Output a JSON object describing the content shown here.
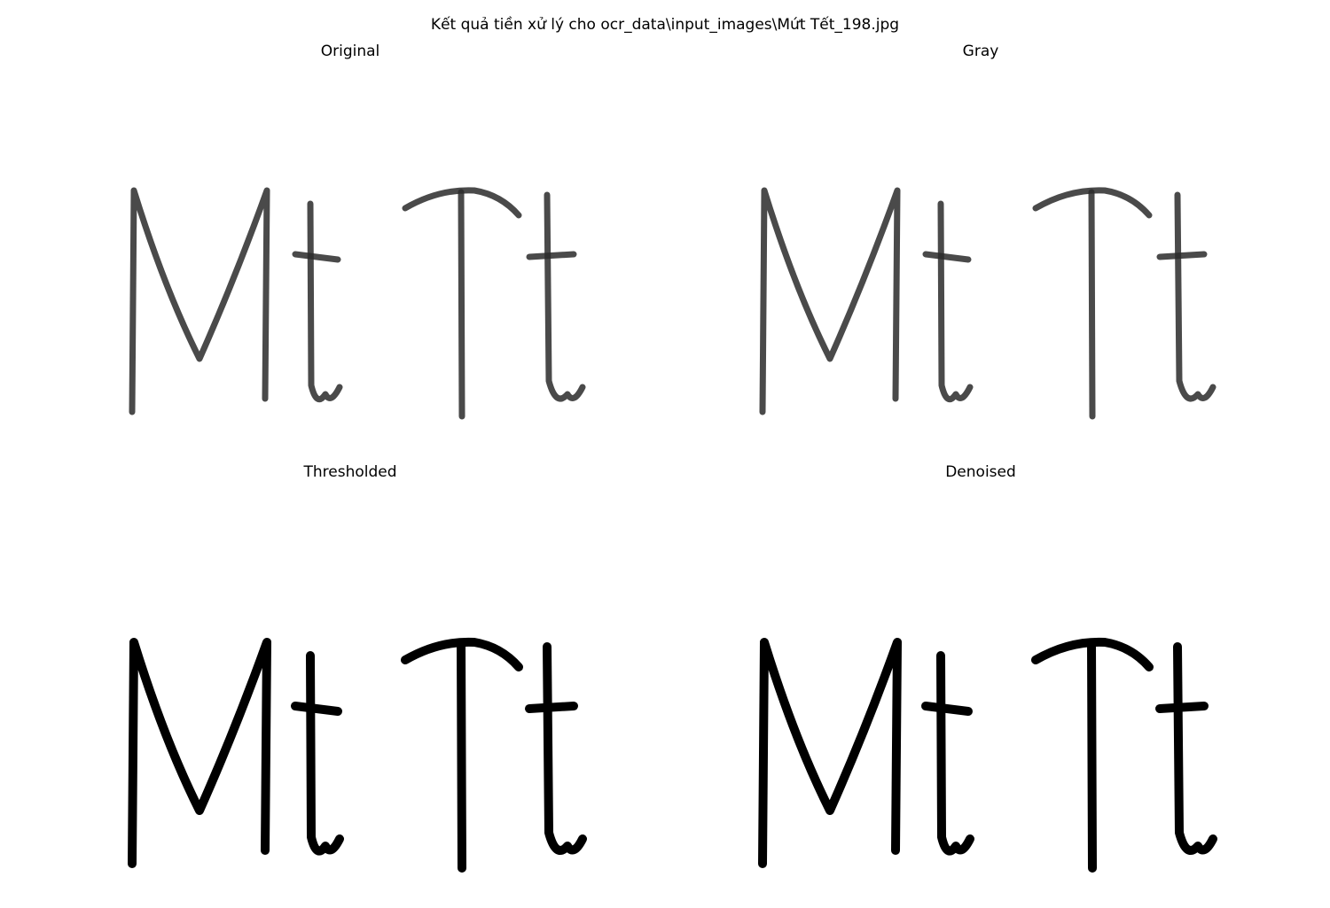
{
  "figure": {
    "title": "Kết quả tiền xử lý cho ocr_data\\input_images\\Mứt Tết_198.jpg"
  },
  "panels": [
    {
      "title": "Original",
      "style": "soft"
    },
    {
      "title": "Gray",
      "style": "soft"
    },
    {
      "title": "Thresholded",
      "style": "binary"
    },
    {
      "title": "Denoised",
      "style": "binary"
    }
  ],
  "colors": {
    "ink": "#000000",
    "soft_ink": "#2a2a2a",
    "background": "#ffffff"
  }
}
